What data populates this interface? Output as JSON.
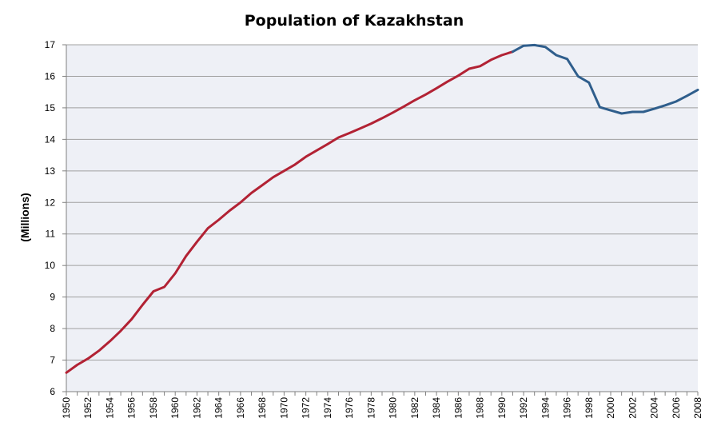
{
  "chart_data": {
    "type": "line",
    "title": "Population of Kazakhstan",
    "xlabel": "",
    "ylabel": "(Millions)",
    "xlim": [
      1950,
      2008
    ],
    "ylim": [
      6,
      17
    ],
    "grid": true,
    "legend": "none",
    "yticks": [
      "6",
      "7",
      "8",
      "9",
      "10",
      "11",
      "12",
      "13",
      "14",
      "15",
      "16",
      "17"
    ],
    "xticks": [
      "1950",
      "1952",
      "1954",
      "1956",
      "1958",
      "1960",
      "1962",
      "1964",
      "1966",
      "1968",
      "1970",
      "1972",
      "1974",
      "1976",
      "1978",
      "1980",
      "1982",
      "1984",
      "1986",
      "1988",
      "1990",
      "1992",
      "1994",
      "1996",
      "1998",
      "2000",
      "2002",
      "2004",
      "2006",
      "2008"
    ],
    "series": [
      {
        "color": "#b22234",
        "x": [
          1950,
          1951,
          1952,
          1953,
          1954,
          1955,
          1956,
          1957,
          1958,
          1959,
          1960,
          1961,
          1962,
          1963,
          1964,
          1965,
          1966,
          1967,
          1968,
          1969,
          1970,
          1971,
          1972,
          1973,
          1974,
          1975,
          1976,
          1977,
          1978,
          1979,
          1980,
          1981,
          1982,
          1983,
          1984,
          1985,
          1986,
          1987,
          1988,
          1989,
          1990,
          1991
        ],
        "y": [
          6.6,
          6.85,
          7.05,
          7.3,
          7.6,
          7.93,
          8.3,
          8.75,
          9.18,
          9.32,
          9.75,
          10.3,
          10.75,
          11.18,
          11.45,
          11.74,
          12.0,
          12.3,
          12.55,
          12.8,
          13.0,
          13.2,
          13.45,
          13.65,
          13.85,
          14.06,
          14.2,
          14.35,
          14.5,
          14.67,
          14.85,
          15.04,
          15.24,
          15.42,
          15.62,
          15.83,
          16.02,
          16.24,
          16.32,
          16.52,
          16.67,
          16.78
        ]
      },
      {
        "color": "#2f5e8c",
        "x": [
          1991,
          1992,
          1993,
          1994,
          1995,
          1996,
          1997,
          1998,
          1999,
          2000,
          2001,
          2002,
          2003,
          2004,
          2005,
          2006,
          2007,
          2008
        ],
        "y": [
          16.78,
          16.97,
          16.99,
          16.93,
          16.67,
          16.55,
          16.0,
          15.8,
          15.02,
          14.92,
          14.82,
          14.87,
          14.87,
          14.97,
          15.08,
          15.2,
          15.38,
          15.57
        ]
      }
    ]
  },
  "style": {
    "plot_bg": "#eef0f6",
    "grid_color": "#a0a0a0",
    "axis_color": "#808080"
  }
}
